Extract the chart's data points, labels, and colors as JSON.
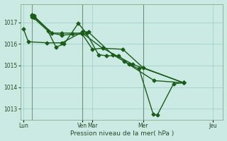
{
  "background_color": "#cceae4",
  "grid_color": "#99ccc4",
  "line_color": "#1a5c1a",
  "line_width": 1.0,
  "marker": "D",
  "marker_size": 2.5,
  "xlabel": "Pression niveau de la mer( hPa )",
  "ylim": [
    1012.5,
    1017.85
  ],
  "yticks": [
    1013,
    1014,
    1015,
    1016,
    1017
  ],
  "xlim": [
    0,
    10
  ],
  "series": [
    {
      "x": [
        0.15,
        0.38,
        1.3,
        2.05,
        3.05,
        3.35,
        4.55,
        5.1,
        6.6,
        8.05
      ],
      "y": [
        1016.68,
        1016.1,
        1016.05,
        1016.05,
        1016.55,
        1016.55,
        1015.5,
        1015.2,
        1014.3,
        1014.2
      ]
    },
    {
      "x": [
        0.55,
        0.65,
        1.35,
        1.75,
        2.15,
        2.85,
        3.25,
        3.85,
        4.25,
        4.85,
        5.35,
        5.85,
        6.55,
        6.75,
        7.55,
        8.05
      ],
      "y": [
        1017.25,
        1017.2,
        1016.6,
        1015.85,
        1016.0,
        1016.95,
        1016.5,
        1015.5,
        1015.45,
        1015.45,
        1015.05,
        1014.85,
        1012.75,
        1012.7,
        1014.15,
        1014.2
      ]
    },
    {
      "x": [
        0.55,
        0.65,
        1.55,
        2.05,
        2.55,
        3.05,
        3.55,
        4.05,
        5.55,
        8.05
      ],
      "y": [
        1017.3,
        1017.25,
        1016.5,
        1016.4,
        1016.45,
        1016.45,
        1015.75,
        1015.8,
        1015.05,
        1014.2
      ]
    },
    {
      "x": [
        0.55,
        0.65,
        1.55,
        2.05,
        3.05,
        4.05,
        5.05,
        6.05,
        8.05
      ],
      "y": [
        1017.35,
        1017.3,
        1016.5,
        1016.5,
        1016.5,
        1015.8,
        1015.75,
        1014.9,
        1014.2
      ]
    }
  ],
  "vlines": [
    0.55,
    3.05,
    6.05
  ],
  "vline_color": "#446644",
  "xtick_positions": [
    0.15,
    3.05,
    3.55,
    6.05,
    9.5
  ],
  "xtick_labels": [
    "Lun",
    "Ven",
    "Mar",
    "Mer",
    "Jeu"
  ]
}
